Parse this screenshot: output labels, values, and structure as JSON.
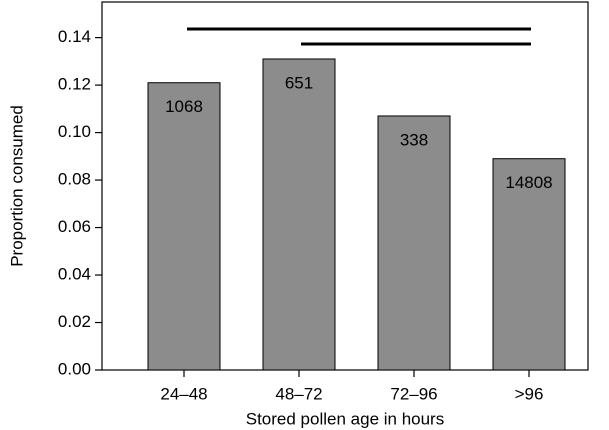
{
  "chart_data": {
    "type": "bar",
    "categories": [
      "24–48",
      "48–72",
      "72–96",
      ">96"
    ],
    "values": [
      0.121,
      0.131,
      0.107,
      0.089
    ],
    "sample_sizes": [
      "1068",
      "651",
      "338",
      "14808"
    ],
    "color": "#8c8c8c",
    "x_label": "Stored pollen age in hours",
    "y_label": "Proportion consumed",
    "ylim": [
      0,
      0.155
    ],
    "yticks": [
      {
        "value": 0,
        "label": "0.00"
      },
      0.02,
      0.04,
      0.06,
      0.08,
      {
        "value": 0.1,
        "label": "0.10"
      },
      0.12,
      0.14
    ]
  }
}
